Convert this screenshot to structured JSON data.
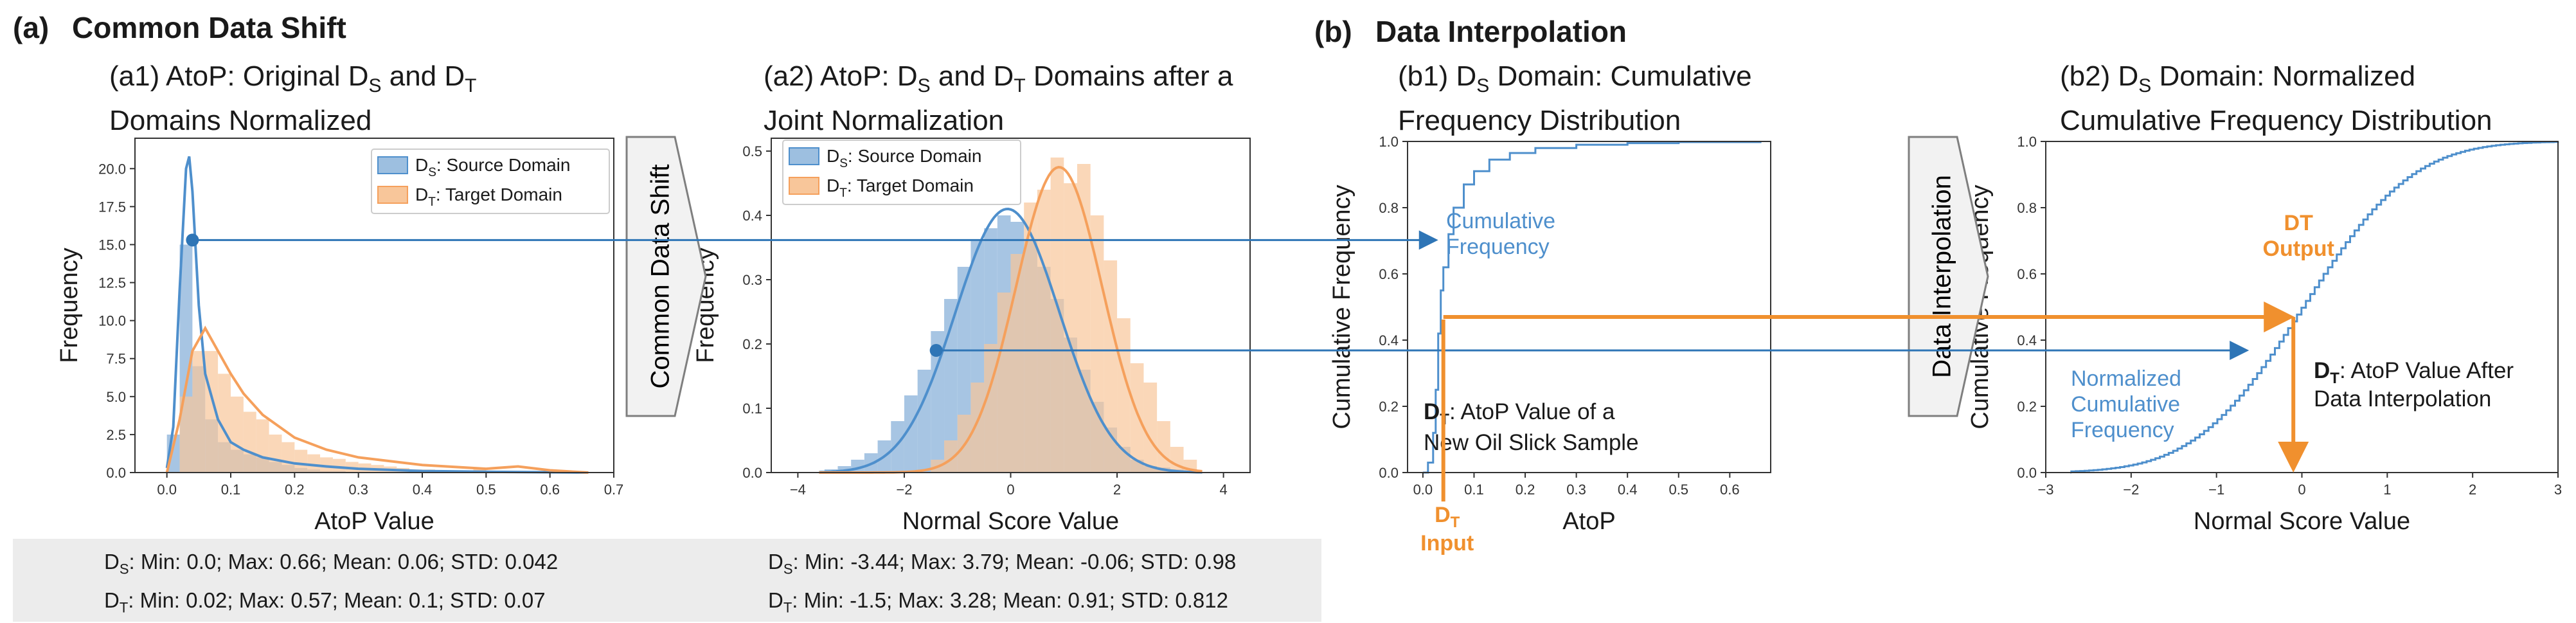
{
  "sections": {
    "a": {
      "label": "(a)",
      "title": "Common Data Shift"
    },
    "b": {
      "label": "(b)",
      "title": "Data Interpolation"
    }
  },
  "colors": {
    "source": "#4e8fcc",
    "source_fill": "#9dbfe0",
    "target": "#f5a05c",
    "target_fill": "#f8c69a",
    "overlap": "#c8a78a",
    "arrow": "#2e75b6",
    "orange": "#f0902e",
    "stats_bg": "#ececec",
    "chevron_fill": "#f2f2f2",
    "chevron_stroke": "#7f7f7f"
  },
  "icons": [
    "chevron-arrow",
    "arrow-line"
  ],
  "chevrons": {
    "a": "Common Data Shift",
    "b": "Data Interpolation"
  },
  "annotations": {
    "a": {
      "source_point_y": 15.3
    },
    "a2": {
      "source_point_x": -1.4,
      "source_point_y": 0.19
    },
    "b1": {
      "curve_label_l1": "Cumulative",
      "curve_label_l2": "Frequency",
      "dt_label_sub": "T",
      "dt_label_head": "D",
      "dt_label_text": ": AtoP Value of a",
      "dt_label_l2": "New Oil Slick Sample",
      "dt_input_head": "D",
      "dt_input_sub": "T",
      "dt_input_word": "Input",
      "input_x": 0.04,
      "input_cum": 0.47
    },
    "b2": {
      "curve_label_l1": "Normalized",
      "curve_label_l2": "Cumulative",
      "curve_label_l3": "Frequency",
      "output_l1": "DT",
      "output_l2": "Output",
      "after_head": "D",
      "after_sub": "T",
      "after_text": ": AtoP Value After",
      "after_l2": "Data Interpolation",
      "output_x": -0.1
    }
  },
  "stats": {
    "a1": {
      "ds": "S",
      "dt": "T",
      "line1": ": Min: 0.0; Max: 0.66; Mean: 0.06; STD: 0.042",
      "line2": ": Min: 0.02; Max: 0.57; Mean: 0.1; STD: 0.07"
    },
    "a2": {
      "ds": "S",
      "dt": "T",
      "line1": ": Min: -3.44; Max: 3.79; Mean: -0.06; STD: 0.98",
      "line2": ": Min: -1.5; Max: 3.28; Mean: 0.91; STD: 0.812"
    }
  },
  "chart_data": [
    {
      "id": "a1",
      "type": "bar",
      "title_prefix": "(a1) AtoP: Original D",
      "title_sub1": "S",
      "title_mid": " and D",
      "title_sub2": "T",
      "title_line2": "Domains Normalized",
      "xlabel": "AtoP Value",
      "ylabel": "Frequency",
      "xlim": [
        -0.05,
        0.7
      ],
      "ylim": [
        0,
        22
      ],
      "xticks": [
        0.0,
        0.1,
        0.2,
        0.3,
        0.4,
        0.5,
        0.6,
        0.7
      ],
      "xtick_labels": [
        "0.0",
        "0.1",
        "0.2",
        "0.3",
        "0.4",
        "0.5",
        "0.6",
        "0.7"
      ],
      "yticks": [
        0,
        2.5,
        5,
        7.5,
        10,
        12.5,
        15,
        17.5,
        20
      ],
      "ytick_labels": [
        "0.0",
        "2.5",
        "5.0",
        "7.5",
        "10.0",
        "12.5",
        "15.0",
        "17.5",
        "20.0"
      ],
      "legend": [
        {
          "name": "D",
          "sub": "S",
          "text": ": Source Domain"
        },
        {
          "name": "D",
          "sub": "T",
          "text": ": Target Domain"
        }
      ],
      "series": [
        {
          "name": "Source Domain",
          "bin_start": 0.0,
          "bin_width": 0.02,
          "values": [
            2.5,
            15.0,
            7.0,
            3.5,
            2.0,
            1.5,
            1.2,
            1.0,
            0.7,
            0.5,
            0.3,
            0.2,
            0.1,
            0.1
          ],
          "kde_x": [
            0.0,
            0.01,
            0.02,
            0.03,
            0.035,
            0.04,
            0.05,
            0.06,
            0.08,
            0.1,
            0.12,
            0.15,
            0.2,
            0.25,
            0.3,
            0.4,
            0.5,
            0.6,
            0.66
          ],
          "kde_y": [
            0.3,
            3.0,
            12.0,
            20.0,
            20.8,
            18.5,
            11.0,
            6.5,
            3.5,
            2.0,
            1.5,
            1.0,
            0.6,
            0.4,
            0.25,
            0.1,
            0.05,
            0.02,
            0.0
          ]
        },
        {
          "name": "Target Domain",
          "bin_start": 0.02,
          "bin_width": 0.02,
          "values": [
            5.0,
            8.0,
            8.0,
            6.5,
            5.0,
            4.0,
            3.5,
            2.5,
            2.0,
            1.5,
            1.2,
            1.0,
            0.9,
            0.7,
            0.6,
            0.5,
            0.4,
            0.3,
            0.2,
            0.2,
            0.15,
            0.1,
            0.1,
            0.3,
            0.1,
            0.1,
            0.05
          ],
          "kde_x": [
            0.0,
            0.02,
            0.04,
            0.06,
            0.08,
            0.1,
            0.12,
            0.15,
            0.2,
            0.25,
            0.3,
            0.4,
            0.5,
            0.55,
            0.6,
            0.66
          ],
          "kde_y": [
            0.0,
            3.5,
            8.0,
            9.5,
            8.0,
            6.5,
            5.2,
            3.8,
            2.3,
            1.5,
            1.0,
            0.5,
            0.25,
            0.4,
            0.15,
            0.0
          ]
        }
      ]
    },
    {
      "id": "a2",
      "type": "bar",
      "title_prefix": "(a2) AtoP: D",
      "title_sub1": "S",
      "title_mid": " and D",
      "title_sub2": "T",
      "title_after": " Domains after a",
      "title_line2": "Joint Normalization",
      "xlabel": "Normal Score Value",
      "ylabel": "Frequency",
      "xlim": [
        -4.5,
        4.5
      ],
      "ylim": [
        0,
        0.52
      ],
      "xticks": [
        -4,
        -2,
        0,
        2,
        4
      ],
      "xtick_labels": [
        "−4",
        "−2",
        "0",
        "2",
        "4"
      ],
      "yticks": [
        0,
        0.1,
        0.2,
        0.3,
        0.4,
        0.5
      ],
      "ytick_labels": [
        "0.0",
        "0.1",
        "0.2",
        "0.3",
        "0.4",
        "0.5"
      ],
      "legend": [
        {
          "name": "D",
          "sub": "S",
          "text": ": Source Domain"
        },
        {
          "name": "D",
          "sub": "T",
          "text": ": Target Domain"
        }
      ],
      "series": [
        {
          "name": "Source Domain",
          "mean": -0.06,
          "std": 0.98,
          "peak": 0.41,
          "bin_start": -3.5,
          "bin_width": 0.25,
          "values": [
            0.005,
            0.01,
            0.02,
            0.03,
            0.05,
            0.08,
            0.12,
            0.16,
            0.22,
            0.27,
            0.32,
            0.36,
            0.38,
            0.4,
            0.39,
            0.36,
            0.32,
            0.27,
            0.21,
            0.16,
            0.11,
            0.07,
            0.04,
            0.02,
            0.01,
            0.008,
            0.005,
            0.002
          ]
        },
        {
          "name": "Target Domain",
          "mean": 0.91,
          "std": 0.812,
          "peak": 0.475,
          "bin_start": -1.5,
          "bin_width": 0.25,
          "values": [
            0.02,
            0.05,
            0.09,
            0.14,
            0.2,
            0.28,
            0.34,
            0.42,
            0.44,
            0.49,
            0.45,
            0.48,
            0.4,
            0.33,
            0.24,
            0.17,
            0.14,
            0.08,
            0.04,
            0.02
          ]
        }
      ]
    },
    {
      "id": "b1",
      "type": "line",
      "title_prefix": "(b1) D",
      "title_sub1": "S",
      "title_after": " Domain: Cumulative",
      "title_line2": "Frequency Distribution",
      "xlabel": "AtoP",
      "ylabel": "Cumulative Frequency",
      "xlim": [
        -0.03,
        0.68
      ],
      "ylim": [
        0,
        1
      ],
      "xticks": [
        0.0,
        0.1,
        0.2,
        0.3,
        0.4,
        0.5,
        0.6
      ],
      "xtick_labels": [
        "0.0",
        "0.1",
        "0.2",
        "0.3",
        "0.4",
        "0.5",
        "0.6"
      ],
      "yticks": [
        0,
        0.2,
        0.4,
        0.6,
        0.8,
        1.0
      ],
      "ytick_labels": [
        "0.0",
        "0.2",
        "0.4",
        "0.6",
        "0.8",
        "1.0"
      ],
      "series": [
        {
          "name": "Cumulative Frequency",
          "x": [
            0.0,
            0.01,
            0.02,
            0.025,
            0.03,
            0.035,
            0.04,
            0.05,
            0.06,
            0.08,
            0.1,
            0.13,
            0.17,
            0.22,
            0.3,
            0.4,
            0.5,
            0.66
          ],
          "y": [
            0.0,
            0.03,
            0.12,
            0.25,
            0.42,
            0.55,
            0.62,
            0.72,
            0.8,
            0.87,
            0.91,
            0.945,
            0.965,
            0.98,
            0.99,
            0.995,
            0.998,
            1.0
          ]
        }
      ]
    },
    {
      "id": "b2",
      "type": "line",
      "title_prefix": "(b2) D",
      "title_sub1": "S",
      "title_after": " Domain: Normalized",
      "title_line2": "Cumulative Frequency Distribution",
      "xlabel": "Normal Score Value",
      "ylabel": "Cumulative Frequency",
      "xlim": [
        -3,
        3
      ],
      "ylim": [
        0,
        1
      ],
      "xticks": [
        -3,
        -2,
        -1,
        0,
        1,
        2,
        3
      ],
      "xtick_labels": [
        "−3",
        "−2",
        "−1",
        "0",
        "1",
        "2",
        "3"
      ],
      "yticks": [
        0,
        0.2,
        0.4,
        0.6,
        0.8,
        1.0
      ],
      "ytick_labels": [
        "0.0",
        "0.2",
        "0.4",
        "0.6",
        "0.8",
        "1.0"
      ],
      "series": [
        {
          "name": "Normalized Cumulative Frequency",
          "distribution": "normal_cdf",
          "mean": 0.0,
          "std": 1.0,
          "x_start": -2.7
        }
      ]
    }
  ]
}
